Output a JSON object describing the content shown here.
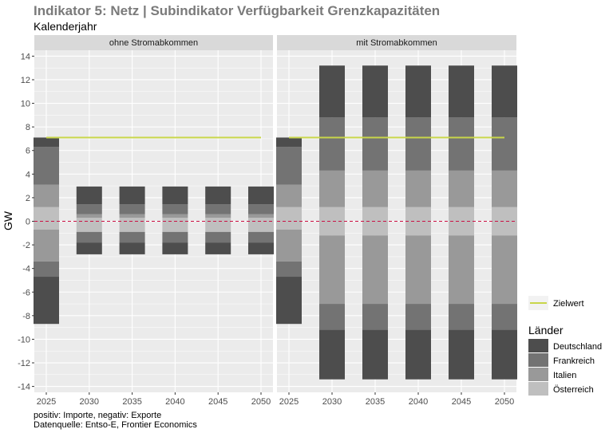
{
  "chart_data": {
    "type": "bar",
    "stacked": true,
    "title": "Indikator 5: Netz | Subindikator Verfügbarkeit Grenzkapazitäten",
    "subtitle": "Kalenderjahr",
    "ylabel": "GW",
    "xlabel": "",
    "ylim": [
      -14.5,
      14.5
    ],
    "yticks": [
      -14,
      -12,
      -10,
      -8,
      -6,
      -4,
      -2,
      0,
      2,
      4,
      6,
      8,
      10,
      12,
      14
    ],
    "categories": [
      "2025",
      "2030",
      "2035",
      "2040",
      "2045",
      "2050"
    ],
    "grid": true,
    "captions": [
      "positiv: Importe, negativ: Exporte",
      "Datenquelle: Entso-E, Frontier Economics"
    ],
    "legend_position": "right",
    "legend_line_label": "Zielwert",
    "legend_title": "Länder",
    "countries": [
      {
        "name": "Deutschland",
        "color": "#4d4d4d"
      },
      {
        "name": "Frankreich",
        "color": "#737373"
      },
      {
        "name": "Italien",
        "color": "#999999"
      },
      {
        "name": "Österreich",
        "color": "#bfbfbf"
      }
    ],
    "target": {
      "name": "Zielwert",
      "value": 7.1,
      "color": "#c8d64a"
    },
    "zero_line_color": "#cc1144",
    "facets": [
      {
        "label": "ohne Stromabkommen",
        "series": [
          {
            "name": "Österreich",
            "positive": [
              1.2,
              0.3,
              0.3,
              0.3,
              0.3,
              0.3
            ],
            "negative": [
              -0.7,
              -0.9,
              -0.9,
              -0.9,
              -0.9,
              -0.9
            ]
          },
          {
            "name": "Italien",
            "positive": [
              1.9,
              0.3,
              0.3,
              0.3,
              0.3,
              0.3
            ],
            "negative": [
              -2.7,
              0,
              0,
              0,
              0,
              0
            ]
          },
          {
            "name": "Frankreich",
            "positive": [
              3.2,
              0.85,
              0.85,
              0.85,
              0.85,
              0.85
            ],
            "negative": [
              -1.3,
              -0.9,
              -0.9,
              -0.9,
              -0.9,
              -0.9
            ]
          },
          {
            "name": "Deutschland",
            "positive": [
              0.8,
              1.5,
              1.5,
              1.5,
              1.5,
              1.5
            ],
            "negative": [
              -4.0,
              -1.0,
              -1.0,
              -1.0,
              -1.0,
              -1.0
            ]
          }
        ]
      },
      {
        "label": "mit Stromabkommen",
        "series": [
          {
            "name": "Österreich",
            "positive": [
              1.2,
              1.2,
              1.2,
              1.2,
              1.2,
              1.2
            ],
            "negative": [
              -0.7,
              -1.2,
              -1.2,
              -1.2,
              -1.2,
              -1.2
            ]
          },
          {
            "name": "Italien",
            "positive": [
              1.9,
              3.1,
              3.1,
              3.1,
              3.1,
              3.1
            ],
            "negative": [
              -2.7,
              -5.8,
              -5.8,
              -5.8,
              -5.8,
              -5.8
            ]
          },
          {
            "name": "Frankreich",
            "positive": [
              3.2,
              4.5,
              4.5,
              4.5,
              4.5,
              4.5
            ],
            "negative": [
              -1.3,
              -2.2,
              -2.2,
              -2.2,
              -2.2,
              -2.2
            ]
          },
          {
            "name": "Deutschland",
            "positive": [
              0.8,
              4.4,
              4.4,
              4.4,
              4.4,
              4.4
            ],
            "negative": [
              -4.0,
              -4.2,
              -4.2,
              -4.2,
              -4.2,
              -4.2
            ]
          }
        ]
      }
    ]
  }
}
